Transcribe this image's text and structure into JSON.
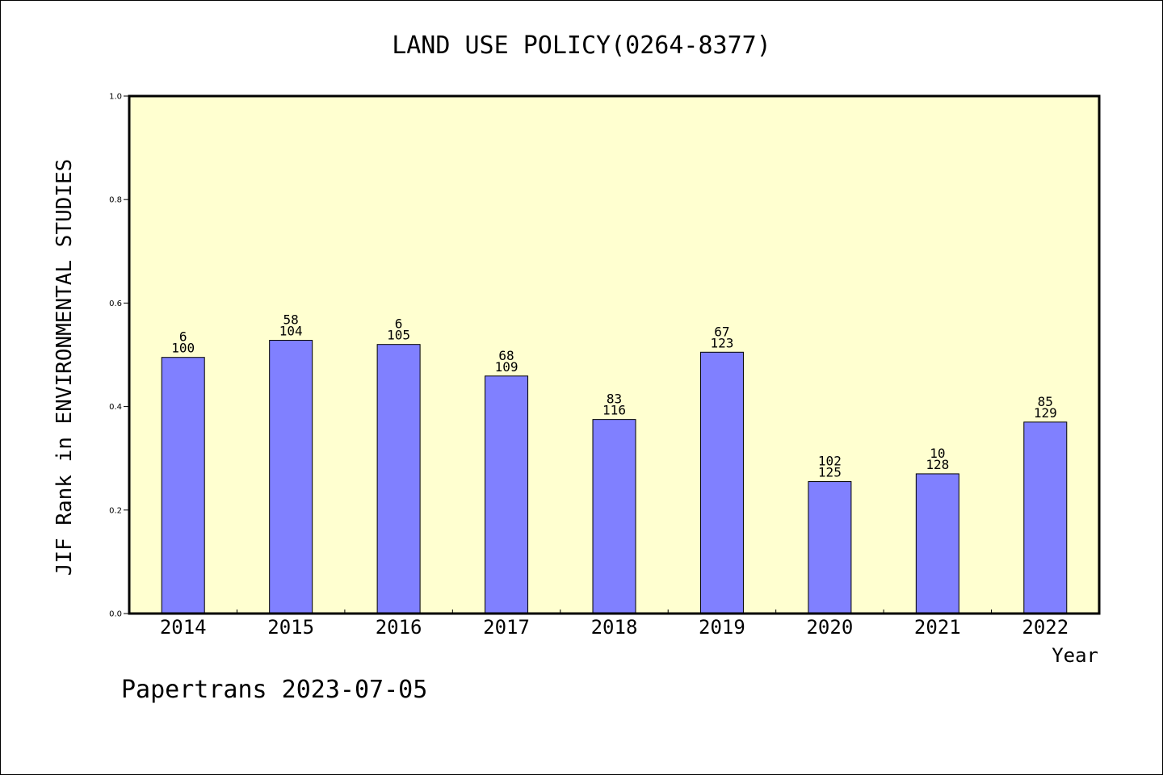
{
  "chart_data": {
    "type": "bar",
    "title": "LAND USE POLICY(0264-8377)",
    "xlabel": "Year",
    "ylabel": "JIF Rank in ENVIRONMENTAL STUDIES",
    "ylim": [
      0,
      1.0
    ],
    "yticks": [
      "0.0",
      "0.2",
      "0.4",
      "0.6",
      "0.8",
      "1.0"
    ],
    "categories": [
      "2014",
      "2015",
      "2016",
      "2017",
      "2018",
      "2019",
      "2020",
      "2021",
      "2022"
    ],
    "values": [
      0.495,
      0.528,
      0.52,
      0.459,
      0.375,
      0.505,
      0.255,
      0.27,
      0.37
    ],
    "rank_labels": [
      "6",
      "58",
      "6",
      "68",
      "83",
      "67",
      "102",
      "10",
      "85"
    ],
    "total_labels": [
      "100",
      "104",
      "105",
      "109",
      "116",
      "123",
      "125",
      "128",
      "129"
    ],
    "grid": false,
    "colors": {
      "plot_bg": "#ffffd0",
      "bar": "#8080ff",
      "bar_edge": "#000000"
    }
  },
  "footer": {
    "credit": "Papertrans 2023-07-05"
  }
}
